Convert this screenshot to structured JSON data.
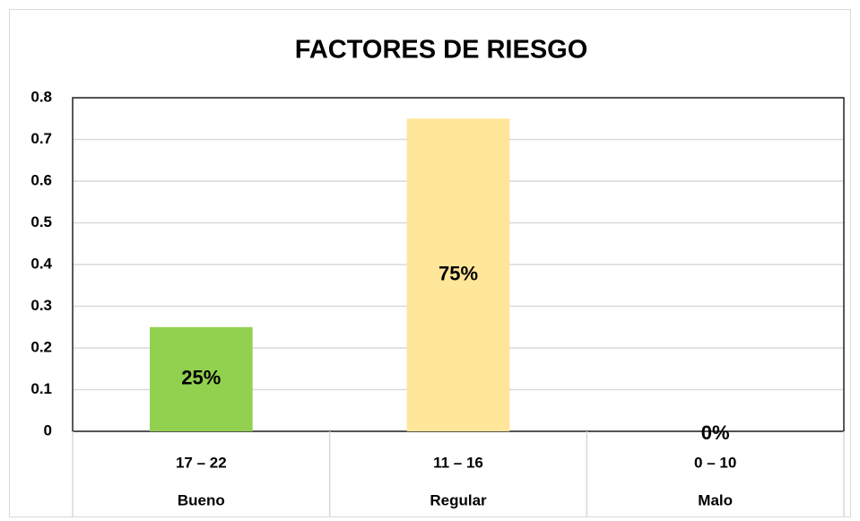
{
  "chart_data": {
    "type": "bar",
    "title": "FACTORES DE RIESGO",
    "categories": [
      "17 – 22",
      "11 – 16",
      "0 – 10"
    ],
    "category_groups": [
      "Bueno",
      "Regular",
      "Malo"
    ],
    "values": [
      0.25,
      0.75,
      0
    ],
    "value_labels": [
      "25%",
      "75%",
      "0%"
    ],
    "colors": [
      "#92d050",
      "#ffe699",
      "#a5a5a5"
    ],
    "ylim": [
      0,
      0.8
    ],
    "yticks": [
      0,
      0.1,
      0.2,
      0.3,
      0.4,
      0.5,
      0.6,
      0.7,
      0.8
    ],
    "grid": true
  }
}
